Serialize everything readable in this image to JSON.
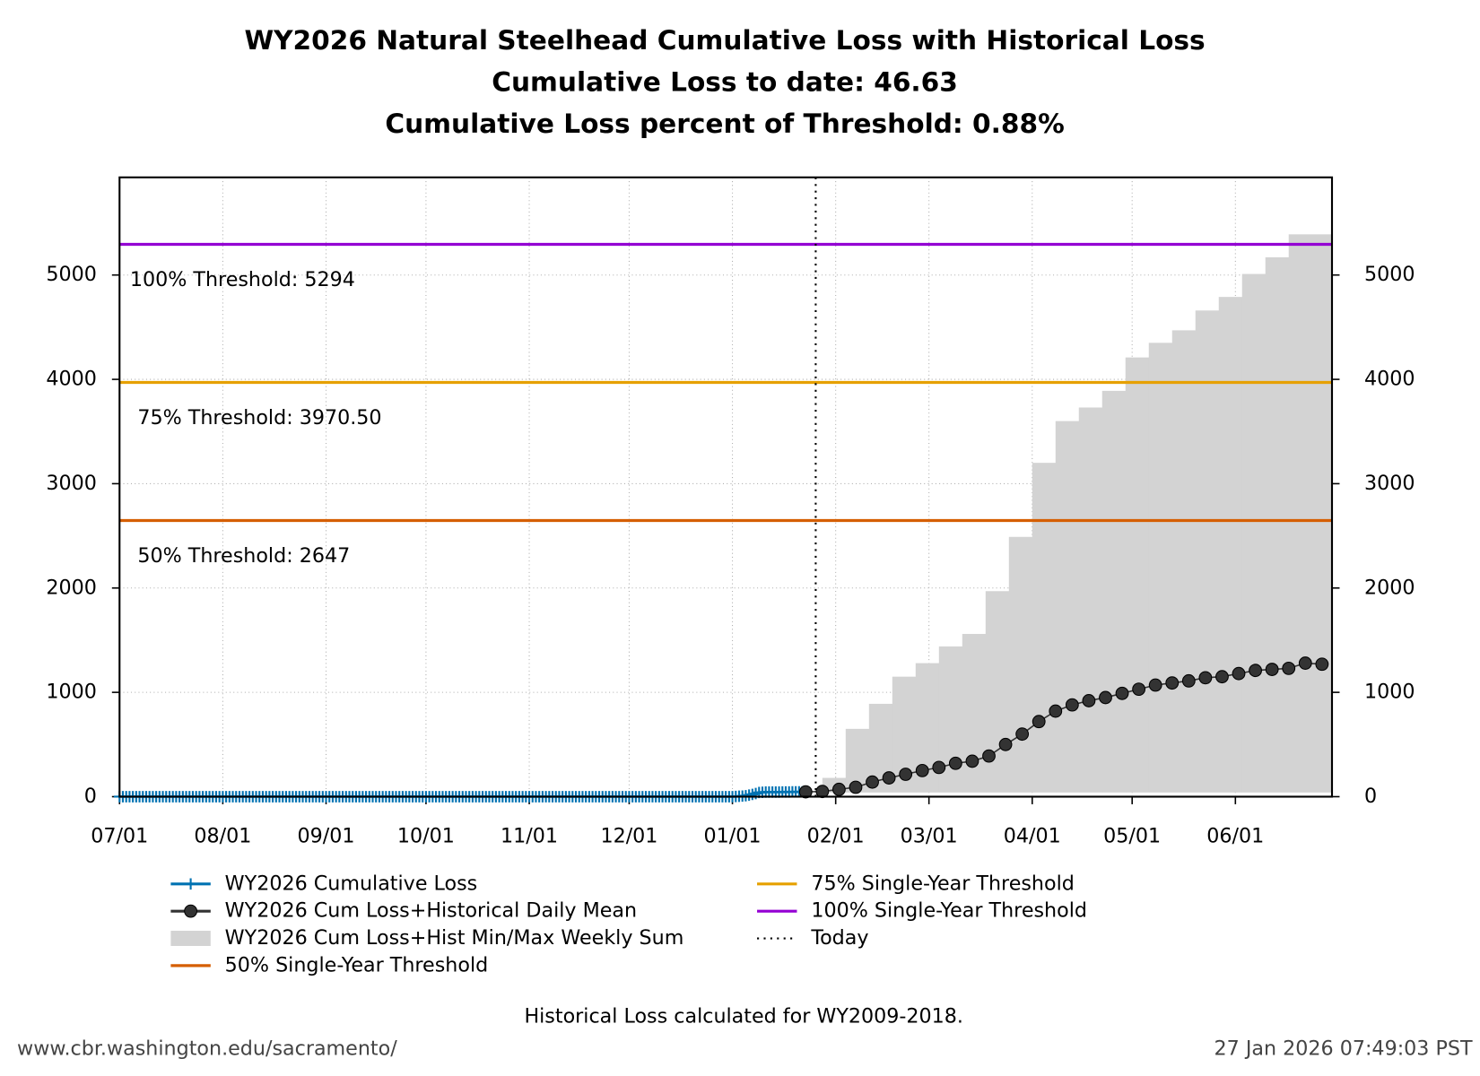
{
  "chart_data": {
    "type": "line",
    "title": "WY2026 Natural Steelhead Cumulative Loss with Historical Loss",
    "subtitle": [
      "Cumulative Loss to date: 46.63",
      "Cumulative Loss percent of Threshold: 0.88%"
    ],
    "note": "Historical Loss calculated for WY2009-2018.",
    "source": "www.cbr.washington.edu/sacramento/",
    "timestamp": "27 Jan 2026 07:49:03 PST",
    "xlim": [
      0,
      364
    ],
    "xticks": [
      {
        "value": 0,
        "label": "07/01"
      },
      {
        "value": 31,
        "label": "08/01"
      },
      {
        "value": 62,
        "label": "09/01"
      },
      {
        "value": 92,
        "label": "10/01"
      },
      {
        "value": 123,
        "label": "11/01"
      },
      {
        "value": 153,
        "label": "12/01"
      },
      {
        "value": 184,
        "label": "01/01"
      },
      {
        "value": 215,
        "label": "02/01"
      },
      {
        "value": 243,
        "label": "03/01"
      },
      {
        "value": 274,
        "label": "04/01"
      },
      {
        "value": 304,
        "label": "05/01"
      },
      {
        "value": 335,
        "label": "06/01"
      }
    ],
    "ylim": [
      0,
      5936
    ],
    "yticks": [
      0,
      1000,
      2000,
      3000,
      4000,
      5000
    ],
    "y2lim": [
      0,
      5936
    ],
    "y2ticks": [
      0,
      1000,
      2000,
      3000,
      4000,
      5000
    ],
    "grid": true,
    "series": [
      {
        "name": "WY2026 Cumulative Loss",
        "style": "line-plus",
        "color": "#0072b2",
        "x": [
          0,
          1,
          2,
          3,
          4,
          5,
          6,
          7,
          8,
          9,
          10,
          11,
          12,
          13,
          14,
          15,
          16,
          17,
          18,
          19,
          20,
          21,
          22,
          23,
          24,
          25,
          26,
          27,
          28,
          29,
          30,
          31,
          32,
          33,
          34,
          35,
          36,
          37,
          38,
          39,
          40,
          41,
          42,
          43,
          44,
          45,
          46,
          47,
          48,
          49,
          50,
          51,
          52,
          53,
          54,
          55,
          56,
          57,
          58,
          59,
          60,
          61,
          62,
          63,
          64,
          65,
          66,
          67,
          68,
          69,
          70,
          71,
          72,
          73,
          74,
          75,
          76,
          77,
          78,
          79,
          80,
          81,
          82,
          83,
          84,
          85,
          86,
          87,
          88,
          89,
          90,
          91,
          92,
          93,
          94,
          95,
          96,
          97,
          98,
          99,
          100,
          101,
          102,
          103,
          104,
          105,
          106,
          107,
          108,
          109,
          110,
          111,
          112,
          113,
          114,
          115,
          116,
          117,
          118,
          119,
          120,
          121,
          122,
          123,
          124,
          125,
          126,
          127,
          128,
          129,
          130,
          131,
          132,
          133,
          134,
          135,
          136,
          137,
          138,
          139,
          140,
          141,
          142,
          143,
          144,
          145,
          146,
          147,
          148,
          149,
          150,
          151,
          152,
          153,
          154,
          155,
          156,
          157,
          158,
          159,
          160,
          161,
          162,
          163,
          164,
          165,
          166,
          167,
          168,
          169,
          170,
          171,
          172,
          173,
          174,
          175,
          176,
          177,
          178,
          179,
          180,
          181,
          182,
          183,
          184,
          185,
          186,
          187,
          188,
          189,
          190,
          191,
          192,
          193,
          194,
          195,
          196,
          197,
          198,
          199,
          200,
          201,
          202,
          203,
          204,
          205,
          206
        ],
        "values": [
          0,
          0,
          0,
          0,
          0,
          0,
          0,
          0,
          0,
          0,
          0,
          0,
          0,
          0,
          0,
          0,
          0,
          0,
          0,
          0,
          0,
          0,
          0,
          0,
          0,
          0,
          0,
          0,
          0,
          0,
          0,
          0,
          0,
          0,
          0,
          0,
          0,
          0,
          0,
          0,
          0,
          0,
          0,
          0,
          0,
          0,
          0,
          0,
          0,
          0,
          0,
          0,
          0,
          0,
          0,
          0,
          0,
          0,
          0,
          0,
          0,
          0,
          0,
          0,
          0,
          0,
          0,
          0,
          0,
          0,
          0,
          0,
          0,
          0,
          0,
          0,
          0,
          0,
          0,
          0,
          0,
          0,
          0,
          0,
          0,
          0,
          0,
          0,
          0,
          0,
          0,
          0,
          0,
          0,
          0,
          0,
          0,
          0,
          0,
          0,
          0,
          0,
          0,
          0,
          0,
          0,
          0,
          0,
          0,
          0,
          0,
          0,
          0,
          0,
          0,
          0,
          0,
          0,
          0,
          0,
          0,
          0,
          0,
          0,
          0,
          0,
          0,
          0,
          0,
          0,
          0,
          0,
          0,
          0,
          0,
          0,
          0,
          0,
          0,
          0,
          0,
          0,
          0,
          0,
          0,
          0,
          0,
          0,
          0,
          0,
          0,
          0,
          0,
          0,
          0,
          0,
          0,
          0,
          0,
          0,
          0,
          0,
          0,
          0,
          0,
          0,
          0,
          0,
          0,
          0,
          0,
          0,
          0,
          0,
          0,
          0,
          0,
          0,
          0,
          0,
          0,
          0,
          0,
          0,
          0,
          2,
          4,
          6,
          9,
          15,
          22,
          30,
          40,
          42,
          44,
          44,
          44,
          44,
          44,
          45,
          45,
          45,
          46,
          46,
          46,
          46.63,
          46.63
        ]
      },
      {
        "name": "WY2026 Cum Loss+Historical Daily Mean",
        "style": "line-dot",
        "color": "#333333",
        "x": [
          206,
          211,
          216,
          221,
          226,
          231,
          236,
          241,
          246,
          251,
          256,
          261,
          266,
          271,
          276,
          281,
          286,
          291,
          296,
          301,
          306,
          311,
          316,
          321,
          326,
          331,
          336,
          341,
          346,
          351,
          356,
          361
        ],
        "values": [
          46,
          50,
          70,
          90,
          140,
          180,
          215,
          250,
          280,
          320,
          340,
          390,
          500,
          600,
          720,
          820,
          880,
          920,
          950,
          990,
          1030,
          1070,
          1090,
          1110,
          1140,
          1150,
          1180,
          1210,
          1220,
          1230,
          1280,
          1270
        ]
      },
      {
        "name": "WY2026 Cum Loss+Hist Min/Max Weekly Sum",
        "style": "band",
        "color": "#d3d3d3",
        "x": [
          211,
          218,
          225,
          232,
          239,
          246,
          253,
          260,
          267,
          274,
          281,
          288,
          295,
          302,
          309,
          316,
          323,
          330,
          337,
          344,
          351
        ],
        "lower": [
          40,
          40,
          40,
          40,
          40,
          40,
          40,
          40,
          40,
          40,
          40,
          40,
          40,
          40,
          40,
          40,
          40,
          40,
          40,
          40,
          40
        ],
        "upper": [
          180,
          650,
          890,
          1150,
          1280,
          1440,
          1560,
          1970,
          2490,
          3200,
          3600,
          3730,
          3890,
          4210,
          4350,
          4470,
          4660,
          4790,
          5010,
          5170,
          5390
        ]
      },
      {
        "name": "50% Single-Year Threshold",
        "style": "hline",
        "color": "#d55e00",
        "value": 2647,
        "label": "50% Threshold: 2647"
      },
      {
        "name": "75% Single-Year Threshold",
        "style": "hline",
        "color": "#e6a000",
        "value": 3970.5,
        "label": "75% Threshold: 3970.50"
      },
      {
        "name": "100% Single-Year Threshold",
        "style": "hline",
        "color": "#9400d3",
        "value": 5294,
        "label": "100% Threshold: 5294"
      },
      {
        "name": "Today",
        "style": "vline",
        "color": "#000000",
        "x": 209
      }
    ]
  }
}
